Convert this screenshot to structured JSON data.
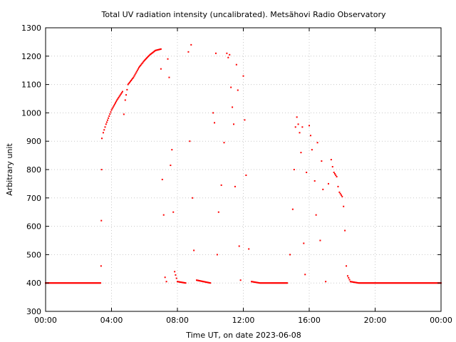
{
  "chart_data": {
    "type": "scatter",
    "title": "Total UV radiation intensity (uncalibrated). Metsähovi Radio Observatory",
    "xlabel": "Time UT, on date 2023-06-08",
    "ylabel": "Arbitrary unit",
    "xlim": [
      "00:00",
      "24:00"
    ],
    "ylim": [
      300,
      1300
    ],
    "x_ticks": [
      "00:00",
      "04:00",
      "08:00",
      "12:00",
      "16:00",
      "20:00",
      "00:00"
    ],
    "y_ticks": [
      300,
      400,
      500,
      600,
      700,
      800,
      900,
      1000,
      1100,
      1200,
      1300
    ],
    "grid": true,
    "marker_color": "#ff0000",
    "series": [
      {
        "points": [
          [
            "00:00",
            400
          ],
          [
            "03:20",
            400
          ],
          [
            "03:22",
            460
          ],
          [
            "03:23",
            620
          ],
          [
            "03:24",
            800
          ],
          [
            "03:25",
            910
          ],
          [
            "03:30",
            930
          ],
          [
            "03:40",
            960
          ],
          [
            "04:00",
            1010
          ],
          [
            "04:20",
            1045
          ],
          [
            "04:40",
            1075
          ],
          [
            "04:45",
            995
          ],
          [
            "04:50",
            1045
          ],
          [
            "05:00",
            1100
          ],
          [
            "05:20",
            1125
          ],
          [
            "05:40",
            1160
          ],
          [
            "06:00",
            1185
          ],
          [
            "06:20",
            1205
          ],
          [
            "06:40",
            1220
          ],
          [
            "07:00",
            1225
          ],
          [
            "07:00",
            1155
          ],
          [
            "07:05",
            765
          ],
          [
            "07:10",
            640
          ],
          [
            "07:15",
            420
          ],
          [
            "07:20",
            405
          ],
          [
            "07:25",
            1190
          ],
          [
            "07:30",
            1125
          ],
          [
            "07:35",
            815
          ],
          [
            "07:40",
            870
          ],
          [
            "07:45",
            650
          ],
          [
            "07:50",
            440
          ],
          [
            "08:00",
            405
          ],
          [
            "08:30",
            400
          ],
          [
            "08:40",
            1215
          ],
          [
            "08:45",
            900
          ],
          [
            "08:50",
            1240
          ],
          [
            "08:55",
            700
          ],
          [
            "09:00",
            515
          ],
          [
            "09:10",
            410
          ],
          [
            "10:00",
            400
          ],
          [
            "10:10",
            1000
          ],
          [
            "10:15",
            965
          ],
          [
            "10:20",
            1210
          ],
          [
            "10:25",
            500
          ],
          [
            "10:30",
            650
          ],
          [
            "10:40",
            745
          ],
          [
            "10:50",
            895
          ],
          [
            "11:00",
            1210
          ],
          [
            "11:05",
            1195
          ],
          [
            "11:10",
            1205
          ],
          [
            "11:15",
            1090
          ],
          [
            "11:20",
            1020
          ],
          [
            "11:25",
            960
          ],
          [
            "11:30",
            740
          ],
          [
            "11:35",
            1170
          ],
          [
            "11:40",
            1080
          ],
          [
            "11:45",
            530
          ],
          [
            "11:50",
            410
          ],
          [
            "12:00",
            1130
          ],
          [
            "12:05",
            975
          ],
          [
            "12:10",
            780
          ],
          [
            "12:20",
            520
          ],
          [
            "12:30",
            405
          ],
          [
            "13:00",
            400
          ],
          [
            "14:40",
            400
          ],
          [
            "14:50",
            500
          ],
          [
            "15:00",
            660
          ],
          [
            "15:05",
            800
          ],
          [
            "15:10",
            950
          ],
          [
            "15:15",
            985
          ],
          [
            "15:20",
            960
          ],
          [
            "15:25",
            930
          ],
          [
            "15:30",
            860
          ],
          [
            "15:35",
            950
          ],
          [
            "15:40",
            540
          ],
          [
            "15:45",
            430
          ],
          [
            "15:50",
            790
          ],
          [
            "16:00",
            955
          ],
          [
            "16:05",
            920
          ],
          [
            "16:10",
            870
          ],
          [
            "16:20",
            760
          ],
          [
            "16:25",
            640
          ],
          [
            "16:30",
            895
          ],
          [
            "16:40",
            550
          ],
          [
            "16:45",
            830
          ],
          [
            "16:50",
            730
          ],
          [
            "17:00",
            405
          ],
          [
            "17:10",
            750
          ],
          [
            "17:20",
            835
          ],
          [
            "17:25",
            810
          ],
          [
            "17:30",
            790
          ],
          [
            "17:40",
            775
          ],
          [
            "17:45",
            740
          ],
          [
            "17:50",
            720
          ],
          [
            "18:00",
            705
          ],
          [
            "18:05",
            670
          ],
          [
            "18:10",
            585
          ],
          [
            "18:15",
            460
          ],
          [
            "18:20",
            425
          ],
          [
            "18:30",
            405
          ],
          [
            "19:00",
            400
          ],
          [
            "20:00",
            400
          ],
          [
            "22:00",
            400
          ],
          [
            "24:00",
            400
          ]
        ]
      }
    ]
  }
}
